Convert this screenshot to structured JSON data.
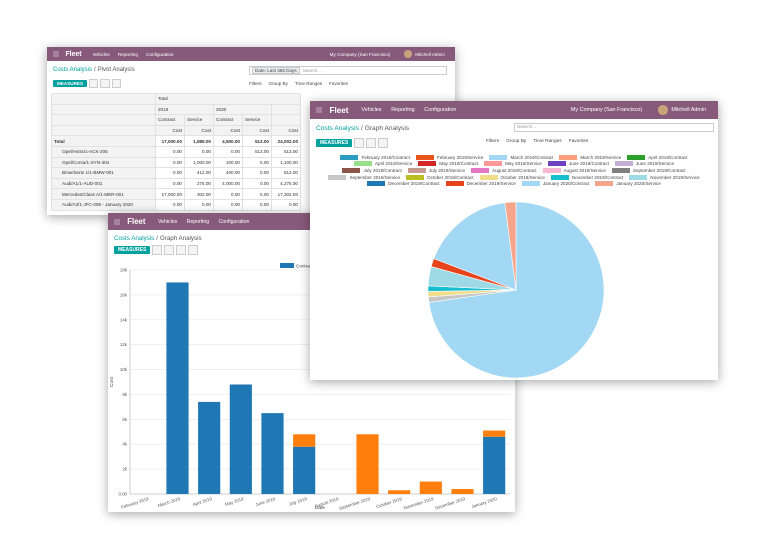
{
  "navbar": {
    "app": "Fleet",
    "menus": [
      "Vehicles",
      "Reporting",
      "Configuration"
    ],
    "company": "My Company (San Francisco)",
    "user": "Mitchell Admin"
  },
  "controls": {
    "measures": "MEASURES",
    "filters": "Filters",
    "group_by": "Group By",
    "time_ranges": "Time Ranges",
    "favorites": "Favorites",
    "search": "Search...",
    "separator": "/"
  },
  "pivot_view": {
    "breadcrumb": [
      "Costs Analysis",
      "Pivot Analysis"
    ],
    "facet": "Date: Last 365 Days",
    "table": {
      "col_total": "Total",
      "years": [
        "2019",
        "2020"
      ],
      "types": [
        "Contract",
        "Service"
      ],
      "measure": "Cost",
      "rows": [
        [
          "Total",
          "17,000.00",
          "1,989.00",
          "4,500.00",
          "513.00",
          "24,002.00"
        ],
        [
          "Opel/Astra/1-ACK-205",
          "0.00",
          "0.00",
          "0.00",
          "513.00",
          "513.00"
        ],
        [
          "Opel/Corsa/1-SYN-404",
          "0.00",
          "1,000.00",
          "100.00",
          "0.00",
          "1,100.00"
        ],
        [
          "Bmw/Serie 1/1-BMW-001",
          "0.00",
          "412.00",
          "400.00",
          "0.00",
          "812.00"
        ],
        [
          "Audi/A1/1-AUD-001",
          "0.00",
          "275.00",
          "4,000.00",
          "0.00",
          "4,275.00"
        ],
        [
          "Mercedes/Class A/1-MER-001",
          "17,000.00",
          "302.00",
          "0.00",
          "0.00",
          "17,302.00"
        ],
        [
          "Audi/A3/1-JFC-095 - January 2020",
          "0.00",
          "0.00",
          "0.00",
          "0.00",
          "0.00"
        ]
      ]
    }
  },
  "graph_view": {
    "breadcrumb": [
      "Costs Analysis",
      "Graph Analysis"
    ],
    "chart": {
      "type": "bar",
      "stacked": true,
      "x_label": "Date",
      "y_label": "Cost",
      "categories": [
        "February 2019",
        "March 2019",
        "April 2019",
        "May 2019",
        "June 2019",
        "July 2019",
        "August 2019",
        "September 2019",
        "October 2019",
        "November 2019",
        "December 2019",
        "January 2020"
      ],
      "series": [
        {
          "name": "Contract",
          "color": "#1f77b4",
          "values": [
            0,
            17000,
            7400,
            8800,
            6500,
            3800,
            0,
            0,
            0,
            0,
            0,
            4600
          ]
        },
        {
          "name": "Service",
          "color": "#ff7f0e",
          "values": [
            0,
            0,
            0,
            0,
            0,
            1000,
            0,
            4800,
            300,
            1000,
            400,
            500
          ]
        }
      ],
      "ylim": [
        0,
        18000
      ],
      "yticks": [
        {
          "value": 0,
          "label": "0.00"
        },
        {
          "value": 2000,
          "label": "2k"
        },
        {
          "value": 4000,
          "label": "4k"
        },
        {
          "value": 6000,
          "label": "6k"
        },
        {
          "value": 8000,
          "label": "8k"
        },
        {
          "value": 10000,
          "label": "10k"
        },
        {
          "value": 12000,
          "label": "12k"
        },
        {
          "value": 14000,
          "label": "14k"
        },
        {
          "value": 16000,
          "label": "16k"
        },
        {
          "value": 18000,
          "label": "18k"
        }
      ],
      "grid": true
    }
  },
  "pie_view": {
    "breadcrumb": [
      "Costs Analysis",
      "Graph Analysis"
    ],
    "chart": {
      "type": "pie",
      "categories": [
        "February 2019/Contract",
        "February 2019/Service",
        "March 2019/Contract",
        "March 2019/Service",
        "April 2019/Contract",
        "April 2019/Service",
        "May 2019/Contract",
        "May 2019/Service",
        "June 2019/Contract",
        "June 2019/Service",
        "July 2019/Contract",
        "July 2019/Service",
        "August 2019/Contract",
        "August 2019/Service",
        "September 2019/Contract",
        "September 2019/Service",
        "October 2019/Contract",
        "October 2019/Service",
        "November 2019/Contract",
        "November 2019/Service",
        "December 2019/Contract",
        "December 2019/Service",
        "January 2020/Contract",
        "January 2020/Service"
      ],
      "values": [
        0,
        0,
        72,
        0,
        0,
        0,
        0,
        0,
        0,
        0,
        0,
        0,
        0,
        0,
        0,
        1,
        0,
        1,
        1,
        3.5,
        0,
        1.5,
        17,
        2
      ],
      "colors": [
        "#2c9dbf",
        "#e8541b",
        "#a3d8f4",
        "#ff9e7a",
        "#2ca02c",
        "#98df8a",
        "#d62728",
        "#ff9896",
        "#6f42c1",
        "#c5b0d5",
        "#8c564b",
        "#c49c94",
        "#e377c2",
        "#f7b6d2",
        "#7f7f7f",
        "#c7c7c7",
        "#bcbd22",
        "#f0dd8c",
        "#17becf",
        "#9edae5",
        "#1f77b4",
        "#e8441b",
        "#a3d8f4",
        "#f5a58a"
      ]
    }
  }
}
